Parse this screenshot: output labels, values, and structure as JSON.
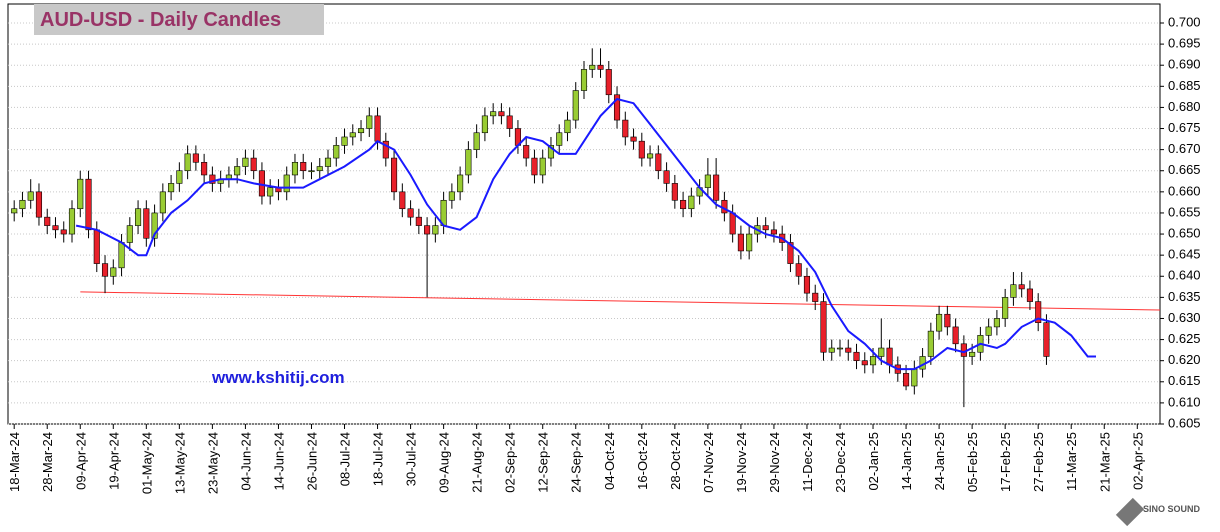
{
  "chart_data": {
    "type": "candlestick",
    "title": "AUD-USD - Daily Candles",
    "watermark": "www.kshitij.com",
    "logo_text": "SINO SOUND",
    "up_color": "#99cc33",
    "down_color": "#e8202a",
    "grid": true,
    "ylim": [
      0.605,
      0.7
    ],
    "yticks": [
      {
        "value": 0.7,
        "label": "0.700"
      },
      {
        "value": 0.695,
        "label": "0.695"
      },
      {
        "value": 0.69,
        "label": "0.690"
      },
      {
        "value": 0.685,
        "label": "0.685"
      },
      {
        "value": 0.68,
        "label": "0.680"
      },
      {
        "value": 0.675,
        "label": "0.675"
      },
      {
        "value": 0.67,
        "label": "0.670"
      },
      {
        "value": 0.665,
        "label": "0.665"
      },
      {
        "value": 0.66,
        "label": "0.660"
      },
      {
        "value": 0.655,
        "label": "0.655"
      },
      {
        "value": 0.65,
        "label": "0.650"
      },
      {
        "value": 0.645,
        "label": "0.645"
      },
      {
        "value": 0.64,
        "label": "0.640"
      },
      {
        "value": 0.635,
        "label": "0.635"
      },
      {
        "value": 0.63,
        "label": "0.630"
      },
      {
        "value": 0.625,
        "label": "0.625"
      },
      {
        "value": 0.62,
        "label": "0.620"
      },
      {
        "value": 0.615,
        "label": "0.615"
      },
      {
        "value": 0.61,
        "label": "0.610"
      },
      {
        "value": 0.605,
        "label": "0.605"
      }
    ],
    "xlim": [
      -1.5,
      277.5
    ],
    "xticks": [
      {
        "value": 0,
        "label": "18-Mar-24"
      },
      {
        "value": 8,
        "label": "28-Mar-24"
      },
      {
        "value": 16,
        "label": "09-Apr-24"
      },
      {
        "value": 24,
        "label": "19-Apr-24"
      },
      {
        "value": 32,
        "label": "01-May-24"
      },
      {
        "value": 40,
        "label": "13-May-24"
      },
      {
        "value": 48,
        "label": "23-May-24"
      },
      {
        "value": 56,
        "label": "04-Jun-24"
      },
      {
        "value": 64,
        "label": "14-Jun-24"
      },
      {
        "value": 72,
        "label": "26-Jun-24"
      },
      {
        "value": 80,
        "label": "08-Jul-24"
      },
      {
        "value": 88,
        "label": "18-Jul-24"
      },
      {
        "value": 96,
        "label": "30-Jul-24"
      },
      {
        "value": 104,
        "label": "09-Aug-24"
      },
      {
        "value": 112,
        "label": "21-Aug-24"
      },
      {
        "value": 120,
        "label": "02-Sep-24"
      },
      {
        "value": 128,
        "label": "12-Sep-24"
      },
      {
        "value": 136,
        "label": "24-Sep-24"
      },
      {
        "value": 144,
        "label": "04-Oct-24"
      },
      {
        "value": 152,
        "label": "16-Oct-24"
      },
      {
        "value": 160,
        "label": "28-Oct-24"
      },
      {
        "value": 168,
        "label": "07-Nov-24"
      },
      {
        "value": 176,
        "label": "19-Nov-24"
      },
      {
        "value": 184,
        "label": "29-Nov-24"
      },
      {
        "value": 192,
        "label": "11-Dec-24"
      },
      {
        "value": 200,
        "label": "23-Dec-24"
      },
      {
        "value": 208,
        "label": "02-Jan-25"
      },
      {
        "value": 216,
        "label": "14-Jan-25"
      },
      {
        "value": 224,
        "label": "24-Jan-25"
      },
      {
        "value": 232,
        "label": "05-Feb-25"
      },
      {
        "value": 240,
        "label": "17-Feb-25"
      },
      {
        "value": 248,
        "label": "27-Feb-25"
      },
      {
        "value": 256,
        "label": "11-Mar-25"
      },
      {
        "value": 264,
        "label": "21-Mar-25"
      },
      {
        "value": 272,
        "label": "02-Apr-25"
      }
    ],
    "x": [
      0,
      2,
      4,
      6,
      8,
      10,
      12,
      14,
      16,
      18,
      20,
      22,
      24,
      26,
      28,
      30,
      32,
      34,
      36,
      38,
      40,
      42,
      44,
      46,
      48,
      50,
      52,
      54,
      56,
      58,
      60,
      62,
      64,
      66,
      68,
      70,
      72,
      74,
      76,
      78,
      80,
      82,
      84,
      86,
      88,
      90,
      92,
      94,
      96,
      98,
      100,
      102,
      104,
      106,
      108,
      110,
      112,
      114,
      116,
      118,
      120,
      122,
      124,
      126,
      128,
      130,
      132,
      134,
      136,
      138,
      140,
      142,
      144,
      146,
      148,
      150,
      152,
      154,
      156,
      158,
      160,
      162,
      164,
      166,
      168,
      170,
      172,
      174,
      176,
      178,
      180,
      182,
      184,
      186,
      188,
      190,
      192,
      194,
      196,
      198,
      200,
      202,
      204,
      206,
      208,
      210,
      212,
      214,
      216,
      218,
      220,
      222,
      224,
      226,
      228,
      230,
      232,
      234,
      236,
      238,
      240,
      242,
      244,
      246,
      248,
      250
    ],
    "open": [
      0.655,
      0.656,
      0.658,
      0.66,
      0.654,
      0.652,
      0.651,
      0.65,
      0.656,
      0.663,
      0.651,
      0.643,
      0.64,
      0.642,
      0.648,
      0.652,
      0.656,
      0.649,
      0.655,
      0.66,
      0.662,
      0.665,
      0.669,
      0.667,
      0.664,
      0.662,
      0.663,
      0.664,
      0.666,
      0.668,
      0.665,
      0.659,
      0.661,
      0.66,
      0.664,
      0.667,
      0.665,
      0.665,
      0.666,
      0.668,
      0.671,
      0.673,
      0.674,
      0.675,
      0.678,
      0.672,
      0.668,
      0.66,
      0.656,
      0.654,
      0.652,
      0.65,
      0.652,
      0.658,
      0.66,
      0.664,
      0.67,
      0.674,
      0.678,
      0.679,
      0.678,
      0.675,
      0.671,
      0.668,
      0.664,
      0.668,
      0.671,
      0.674,
      0.677,
      0.684,
      0.689,
      0.69,
      0.689,
      0.683,
      0.677,
      0.673,
      0.672,
      0.668,
      0.669,
      0.665,
      0.662,
      0.658,
      0.656,
      0.659,
      0.661,
      0.664,
      0.658,
      0.655,
      0.65,
      0.646,
      0.65,
      0.652,
      0.651,
      0.65,
      0.648,
      0.643,
      0.64,
      0.636,
      0.634,
      0.622,
      0.623,
      0.623,
      0.622,
      0.62,
      0.619,
      0.621,
      0.623,
      0.619,
      0.617,
      0.614,
      0.618,
      0.621,
      0.627,
      0.631,
      0.628,
      0.624,
      0.621,
      0.622,
      0.626,
      0.628,
      0.63,
      0.635,
      0.638,
      0.637,
      0.634,
      0.629
    ],
    "high": [
      0.658,
      0.66,
      0.663,
      0.662,
      0.656,
      0.654,
      0.653,
      0.658,
      0.665,
      0.665,
      0.653,
      0.645,
      0.644,
      0.65,
      0.654,
      0.658,
      0.658,
      0.657,
      0.662,
      0.664,
      0.667,
      0.671,
      0.671,
      0.669,
      0.666,
      0.665,
      0.666,
      0.668,
      0.67,
      0.67,
      0.667,
      0.663,
      0.663,
      0.666,
      0.669,
      0.669,
      0.667,
      0.668,
      0.67,
      0.673,
      0.675,
      0.676,
      0.677,
      0.68,
      0.68,
      0.674,
      0.67,
      0.662,
      0.658,
      0.656,
      0.654,
      0.654,
      0.66,
      0.662,
      0.666,
      0.672,
      0.676,
      0.68,
      0.681,
      0.681,
      0.68,
      0.677,
      0.673,
      0.67,
      0.67,
      0.673,
      0.676,
      0.679,
      0.686,
      0.691,
      0.694,
      0.694,
      0.691,
      0.685,
      0.679,
      0.675,
      0.674,
      0.671,
      0.671,
      0.667,
      0.664,
      0.66,
      0.661,
      0.663,
      0.668,
      0.668,
      0.66,
      0.657,
      0.652,
      0.652,
      0.654,
      0.654,
      0.653,
      0.652,
      0.65,
      0.645,
      0.642,
      0.638,
      0.636,
      0.625,
      0.625,
      0.625,
      0.624,
      0.622,
      0.623,
      0.63,
      0.625,
      0.621,
      0.619,
      0.62,
      0.623,
      0.629,
      0.633,
      0.633,
      0.63,
      0.626,
      0.624,
      0.628,
      0.63,
      0.632,
      0.637,
      0.641,
      0.641,
      0.639,
      0.636,
      0.631
    ],
    "low": [
      0.653,
      0.654,
      0.656,
      0.652,
      0.65,
      0.649,
      0.648,
      0.648,
      0.654,
      0.649,
      0.641,
      0.636,
      0.638,
      0.64,
      0.646,
      0.65,
      0.647,
      0.647,
      0.653,
      0.658,
      0.66,
      0.663,
      0.665,
      0.662,
      0.66,
      0.66,
      0.661,
      0.662,
      0.664,
      0.663,
      0.657,
      0.657,
      0.658,
      0.658,
      0.662,
      0.663,
      0.663,
      0.663,
      0.664,
      0.666,
      0.669,
      0.671,
      0.672,
      0.673,
      0.67,
      0.666,
      0.658,
      0.654,
      0.652,
      0.65,
      0.635,
      0.648,
      0.65,
      0.656,
      0.658,
      0.662,
      0.668,
      0.672,
      0.676,
      0.676,
      0.673,
      0.669,
      0.666,
      0.662,
      0.662,
      0.666,
      0.669,
      0.672,
      0.675,
      0.682,
      0.687,
      0.687,
      0.681,
      0.675,
      0.671,
      0.67,
      0.666,
      0.666,
      0.663,
      0.66,
      0.656,
      0.654,
      0.654,
      0.657,
      0.659,
      0.656,
      0.653,
      0.648,
      0.644,
      0.644,
      0.648,
      0.649,
      0.648,
      0.646,
      0.641,
      0.638,
      0.634,
      0.632,
      0.62,
      0.62,
      0.621,
      0.62,
      0.618,
      0.617,
      0.617,
      0.619,
      0.617,
      0.615,
      0.613,
      0.612,
      0.616,
      0.619,
      0.625,
      0.626,
      0.622,
      0.609,
      0.619,
      0.62,
      0.624,
      0.626,
      0.628,
      0.633,
      0.635,
      0.632,
      0.627,
      0.619
    ],
    "close": [
      0.656,
      0.658,
      0.66,
      0.654,
      0.652,
      0.651,
      0.65,
      0.656,
      0.663,
      0.651,
      0.643,
      0.64,
      0.642,
      0.648,
      0.652,
      0.656,
      0.649,
      0.655,
      0.66,
      0.662,
      0.665,
      0.669,
      0.667,
      0.664,
      0.662,
      0.663,
      0.664,
      0.666,
      0.668,
      0.665,
      0.659,
      0.661,
      0.66,
      0.664,
      0.667,
      0.665,
      0.665,
      0.666,
      0.668,
      0.671,
      0.673,
      0.674,
      0.675,
      0.678,
      0.672,
      0.668,
      0.66,
      0.656,
      0.654,
      0.652,
      0.65,
      0.652,
      0.658,
      0.66,
      0.664,
      0.67,
      0.674,
      0.678,
      0.679,
      0.678,
      0.675,
      0.671,
      0.668,
      0.664,
      0.668,
      0.671,
      0.674,
      0.677,
      0.684,
      0.689,
      0.69,
      0.689,
      0.683,
      0.677,
      0.673,
      0.672,
      0.668,
      0.669,
      0.665,
      0.662,
      0.658,
      0.656,
      0.659,
      0.661,
      0.664,
      0.658,
      0.655,
      0.65,
      0.646,
      0.65,
      0.652,
      0.651,
      0.65,
      0.648,
      0.643,
      0.64,
      0.636,
      0.634,
      0.622,
      0.623,
      0.623,
      0.622,
      0.62,
      0.619,
      0.621,
      0.623,
      0.619,
      0.617,
      0.614,
      0.618,
      0.621,
      0.627,
      0.631,
      0.628,
      0.624,
      0.621,
      0.622,
      0.626,
      0.628,
      0.63,
      0.635,
      0.638,
      0.637,
      0.634,
      0.629,
      0.621
    ],
    "moving_average": {
      "color": "#1a1aff",
      "x": [
        15,
        20,
        26,
        30,
        32,
        34,
        38,
        42,
        46,
        50,
        54,
        58,
        64,
        70,
        74,
        80,
        86,
        88,
        92,
        96,
        100,
        104,
        108,
        112,
        116,
        120,
        124,
        128,
        132,
        136,
        138,
        142,
        146,
        150,
        154,
        158,
        162,
        166,
        170,
        174,
        178,
        182,
        186,
        190,
        194,
        198,
        202,
        206,
        210,
        214,
        218,
        222,
        226,
        230,
        234,
        238,
        240,
        244,
        248,
        252,
        256,
        260,
        262
      ],
      "values": [
        0.652,
        0.651,
        0.648,
        0.645,
        0.645,
        0.65,
        0.655,
        0.658,
        0.662,
        0.663,
        0.663,
        0.662,
        0.661,
        0.661,
        0.663,
        0.666,
        0.67,
        0.672,
        0.67,
        0.664,
        0.657,
        0.652,
        0.651,
        0.654,
        0.663,
        0.669,
        0.673,
        0.672,
        0.669,
        0.669,
        0.672,
        0.678,
        0.682,
        0.681,
        0.676,
        0.671,
        0.666,
        0.661,
        0.657,
        0.655,
        0.652,
        0.65,
        0.649,
        0.646,
        0.641,
        0.633,
        0.627,
        0.624,
        0.62,
        0.618,
        0.618,
        0.62,
        0.623,
        0.622,
        0.624,
        0.623,
        0.624,
        0.628,
        0.63,
        0.629,
        0.626,
        0.621,
        0.621
      ]
    },
    "trendline": {
      "color": "#ff3333",
      "x": [
        16,
        277.5
      ],
      "values": [
        0.6363,
        0.632
      ]
    }
  }
}
